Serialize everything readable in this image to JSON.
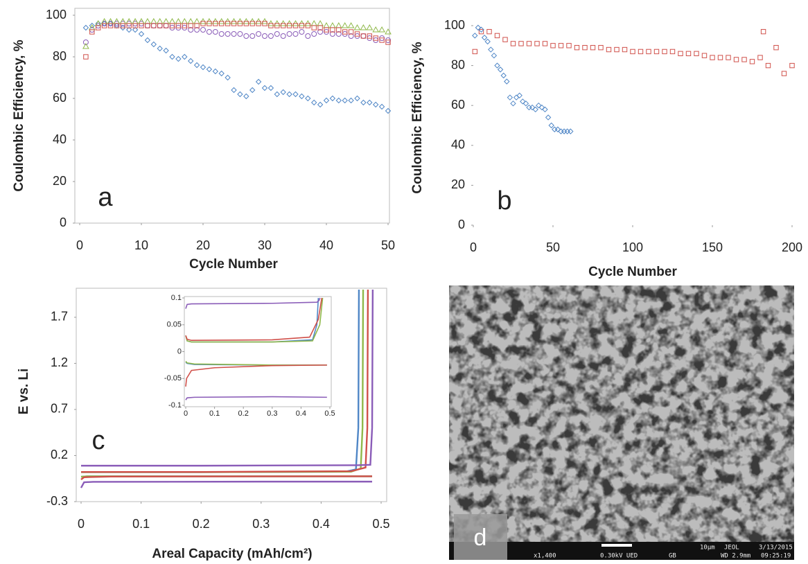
{
  "chart_data": [
    {
      "type": "scatter",
      "label": "a",
      "x_label": "Cycle Number",
      "y_label": "Coulombic Efficiency, %",
      "xlim": [
        0,
        50
      ],
      "xticks": [
        0,
        10,
        20,
        30,
        40,
        50
      ],
      "ylim": [
        0,
        100
      ],
      "yticks": [
        0,
        20,
        40,
        60,
        80,
        100
      ],
      "series": [
        {
          "color": "#4f86c6",
          "marker": "diamond",
          "x": [
            1,
            2,
            3,
            4,
            5,
            6,
            7,
            8,
            9,
            10,
            11,
            12,
            13,
            14,
            15,
            16,
            17,
            18,
            19,
            20,
            21,
            22,
            23,
            24,
            25,
            26,
            27,
            28,
            29,
            30,
            31,
            32,
            33,
            34,
            35,
            36,
            37,
            38,
            39,
            40,
            41,
            42,
            43,
            44,
            45,
            46,
            47,
            48,
            49,
            50
          ],
          "values": [
            94,
            95,
            96,
            96,
            96,
            95,
            94,
            93,
            93,
            91,
            88,
            86,
            84,
            83,
            80,
            79,
            80,
            78,
            76,
            75,
            74,
            73,
            72,
            70,
            64,
            62,
            61,
            64,
            68,
            65,
            65,
            62,
            63,
            62,
            62,
            61,
            60,
            58,
            57,
            59,
            60,
            59,
            59,
            59,
            60,
            58,
            58,
            57,
            56,
            54
          ]
        },
        {
          "color": "#8a5cb8",
          "marker": "circle",
          "x": [
            1,
            2,
            3,
            4,
            5,
            6,
            7,
            8,
            9,
            10,
            11,
            12,
            13,
            14,
            15,
            16,
            17,
            18,
            19,
            20,
            21,
            22,
            23,
            24,
            25,
            26,
            27,
            28,
            29,
            30,
            31,
            32,
            33,
            34,
            35,
            36,
            37,
            38,
            39,
            40,
            41,
            42,
            43,
            44,
            45,
            46,
            47,
            48,
            49,
            50
          ],
          "values": [
            87,
            93,
            95,
            96,
            96,
            96,
            96,
            96,
            96,
            96,
            95,
            95,
            95,
            95,
            94,
            94,
            94,
            93,
            93,
            93,
            92,
            92,
            91,
            91,
            91,
            91,
            90,
            90,
            91,
            90,
            90,
            91,
            90,
            91,
            91,
            92,
            90,
            91,
            92,
            92,
            91,
            91,
            91,
            90,
            90,
            90,
            89,
            88,
            89,
            88
          ]
        },
        {
          "color": "#8fb84a",
          "marker": "triangle",
          "x": [
            1,
            2,
            3,
            4,
            5,
            6,
            7,
            8,
            9,
            10,
            11,
            12,
            13,
            14,
            15,
            16,
            17,
            18,
            19,
            20,
            21,
            22,
            23,
            24,
            25,
            26,
            27,
            28,
            29,
            30,
            31,
            32,
            33,
            34,
            35,
            36,
            37,
            38,
            39,
            40,
            41,
            42,
            43,
            44,
            45,
            46,
            47,
            48,
            49,
            50
          ],
          "values": [
            85,
            94,
            96,
            97,
            97,
            97,
            97,
            97,
            97,
            97,
            97,
            97,
            97,
            97,
            97,
            97,
            97,
            97,
            97,
            97,
            97,
            97,
            97,
            97,
            97,
            97,
            97,
            97,
            97,
            97,
            96,
            96,
            96,
            96,
            96,
            96,
            96,
            96,
            96,
            95,
            95,
            95,
            95,
            95,
            94,
            94,
            94,
            93,
            93,
            92
          ]
        },
        {
          "color": "#d0504a",
          "marker": "square",
          "x": [
            1,
            2,
            3,
            4,
            5,
            6,
            7,
            8,
            9,
            10,
            11,
            12,
            13,
            14,
            15,
            16,
            17,
            18,
            19,
            20,
            21,
            22,
            23,
            24,
            25,
            26,
            27,
            28,
            29,
            30,
            31,
            32,
            33,
            34,
            35,
            36,
            37,
            38,
            39,
            40,
            41,
            42,
            43,
            44,
            45,
            46,
            47,
            48,
            49,
            50
          ],
          "values": [
            80,
            92,
            94,
            95,
            95,
            95,
            95,
            95,
            95,
            95,
            95,
            95,
            95,
            95,
            95,
            95,
            95,
            95,
            95,
            96,
            96,
            96,
            96,
            96,
            96,
            96,
            96,
            96,
            96,
            96,
            95,
            95,
            95,
            95,
            95,
            95,
            95,
            94,
            94,
            93,
            93,
            93,
            92,
            92,
            91,
            90,
            90,
            89,
            88,
            87
          ]
        }
      ]
    },
    {
      "type": "scatter",
      "label": "b",
      "x_label": "Cycle Number",
      "y_label": "Coulombic Efficiency, %",
      "xlim": [
        0,
        200
      ],
      "xticks": [
        0,
        50,
        100,
        150,
        200
      ],
      "ylim": [
        0,
        100
      ],
      "yticks": [
        0,
        20,
        40,
        60,
        80,
        100
      ],
      "series": [
        {
          "color": "#d0504a",
          "marker": "square",
          "x": [
            1,
            5,
            10,
            15,
            20,
            25,
            30,
            35,
            40,
            45,
            50,
            55,
            60,
            65,
            70,
            75,
            80,
            85,
            90,
            95,
            100,
            105,
            110,
            115,
            120,
            125,
            130,
            135,
            140,
            145,
            150,
            155,
            160,
            165,
            170,
            175,
            180,
            182,
            185,
            190,
            195,
            200
          ],
          "values": [
            87,
            97,
            97,
            95,
            93,
            91,
            91,
            91,
            91,
            91,
            90,
            90,
            90,
            89,
            89,
            89,
            89,
            88,
            88,
            88,
            87,
            87,
            87,
            87,
            87,
            87,
            86,
            86,
            86,
            85,
            84,
            84,
            84,
            83,
            83,
            82,
            84,
            97,
            80,
            89,
            76,
            80
          ]
        },
        {
          "color": "#4f86c6",
          "marker": "diamond",
          "x": [
            1,
            3,
            5,
            7,
            9,
            11,
            13,
            15,
            17,
            19,
            21,
            23,
            25,
            27,
            29,
            31,
            33,
            35,
            37,
            39,
            41,
            43,
            45,
            47,
            49,
            51,
            53,
            55,
            57,
            59,
            61
          ],
          "values": [
            95,
            99,
            98,
            94,
            92,
            88,
            85,
            80,
            78,
            75,
            72,
            64,
            61,
            64,
            65,
            62,
            61,
            59,
            59,
            58,
            60,
            59,
            58,
            54,
            50,
            48,
            48,
            47,
            47,
            47,
            47
          ]
        }
      ]
    },
    {
      "type": "line",
      "label": "c",
      "x_label": "Areal Capacity (mAh/cm²)",
      "y_label": "E vs. Li",
      "xlim": [
        0,
        0.5
      ],
      "xticks": [
        0,
        0.1,
        0.2,
        0.3,
        0.4,
        0.5
      ],
      "ylim": [
        -0.3,
        2.0
      ],
      "yticks": [
        -0.3,
        0.2,
        0.7,
        1.2,
        1.7
      ],
      "series": [
        {
          "color": "#4f86c6",
          "x": [
            0,
            0.01,
            0.2,
            0.44,
            0.458,
            0.462,
            0.463
          ],
          "values": [
            0.02,
            0.02,
            0.02,
            0.025,
            0.05,
            0.5,
            2.0
          ]
        },
        {
          "color": "#8fb84a",
          "x": [
            0,
            0.01,
            0.2,
            0.45,
            0.466,
            0.469,
            0.47
          ],
          "values": [
            0.02,
            0.02,
            0.02,
            0.025,
            0.06,
            0.5,
            2.0
          ]
        },
        {
          "color": "#d0504a",
          "x": [
            0,
            0.01,
            0.2,
            0.45,
            0.474,
            0.477,
            0.478
          ],
          "values": [
            0.022,
            0.022,
            0.022,
            0.03,
            0.07,
            0.5,
            2.0
          ]
        },
        {
          "color": "#8a5cb8",
          "x": [
            0,
            0.01,
            0.2,
            0.46,
            0.482,
            0.485,
            0.486
          ],
          "values": [
            0.09,
            0.09,
            0.09,
            0.095,
            0.1,
            0.5,
            2.0
          ]
        },
        {
          "color": "#4f86c6",
          "x": [
            0,
            0.01,
            0.1,
            0.485
          ],
          "values": [
            -0.03,
            -0.025,
            -0.025,
            -0.025
          ]
        },
        {
          "color": "#8fb84a",
          "x": [
            0,
            0.01,
            0.1,
            0.485
          ],
          "values": [
            -0.03,
            -0.025,
            -0.025,
            -0.025
          ]
        },
        {
          "color": "#d0504a",
          "x": [
            0,
            0.005,
            0.05,
            0.485
          ],
          "values": [
            -0.06,
            -0.035,
            -0.028,
            -0.025
          ]
        },
        {
          "color": "#8a5cb8",
          "x": [
            0,
            0.005,
            0.02,
            0.3,
            0.485
          ],
          "values": [
            -0.15,
            -0.09,
            -0.085,
            -0.083,
            -0.083
          ]
        }
      ]
    },
    {
      "type": "line",
      "xlim": [
        0,
        0.5
      ],
      "xticks": [
        0,
        0.1,
        0.2,
        0.3,
        0.4,
        0.5
      ],
      "ylim": [
        -0.1,
        0.1
      ],
      "yticks": [
        -0.1,
        -0.05,
        0,
        0.05,
        0.1
      ],
      "series": [
        {
          "color": "#4f86c6",
          "x": [
            0,
            0.005,
            0.02,
            0.3,
            0.44,
            0.455,
            0.46
          ],
          "values": [
            0.03,
            0.02,
            0.018,
            0.018,
            0.022,
            0.05,
            0.1
          ]
        },
        {
          "color": "#8fb84a",
          "x": [
            0,
            0.005,
            0.02,
            0.3,
            0.44,
            0.465,
            0.475
          ],
          "values": [
            0.03,
            0.02,
            0.018,
            0.018,
            0.02,
            0.05,
            0.1
          ]
        },
        {
          "color": "#d0504a",
          "x": [
            0,
            0.005,
            0.02,
            0.3,
            0.43,
            0.46,
            0.472
          ],
          "values": [
            0.03,
            0.023,
            0.021,
            0.022,
            0.027,
            0.06,
            0.1
          ]
        },
        {
          "color": "#8a5cb8",
          "x": [
            0,
            0.005,
            0.02,
            0.3,
            0.455,
            0.462,
            0.466
          ],
          "values": [
            0.08,
            0.088,
            0.089,
            0.09,
            0.092,
            0.095,
            0.1
          ]
        },
        {
          "color": "#4f86c6",
          "x": [
            0,
            0.005,
            0.03,
            0.3,
            0.49
          ],
          "values": [
            -0.02,
            -0.022,
            -0.024,
            -0.025,
            -0.025
          ]
        },
        {
          "color": "#8fb84a",
          "x": [
            0,
            0.005,
            0.03,
            0.3,
            0.49
          ],
          "values": [
            -0.018,
            -0.021,
            -0.023,
            -0.025,
            -0.025
          ]
        },
        {
          "color": "#d0504a",
          "x": [
            0,
            0.003,
            0.02,
            0.1,
            0.3,
            0.49
          ],
          "values": [
            -0.065,
            -0.05,
            -0.035,
            -0.03,
            -0.026,
            -0.025
          ]
        },
        {
          "color": "#8a5cb8",
          "x": [
            0,
            0.005,
            0.03,
            0.3,
            0.49
          ],
          "values": [
            -0.09,
            -0.086,
            -0.085,
            -0.084,
            -0.085
          ]
        }
      ]
    }
  ],
  "image": {
    "label": "d",
    "info": [
      "x1,400",
      "0.30kV UED",
      "GB",
      "WD 2.9mm",
      "09:25:19",
      "10µm",
      "JEOL",
      "3/13/2015"
    ]
  }
}
